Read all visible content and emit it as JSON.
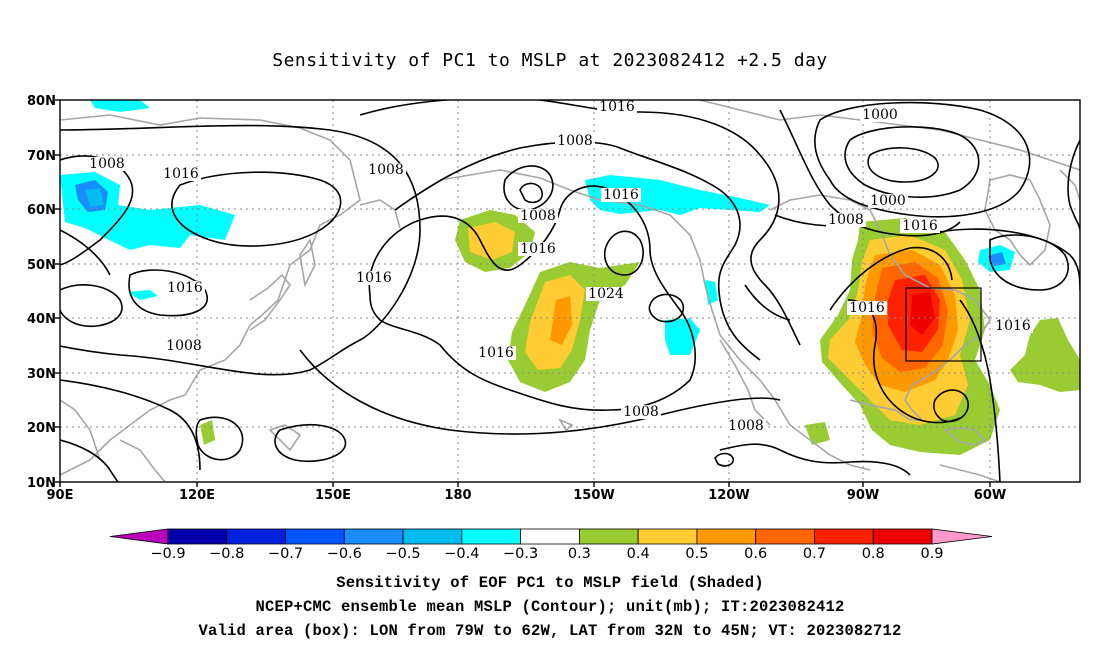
{
  "title": "Sensitivity of PC1 to MSLP at 2023082412 +2.5 day",
  "map": {
    "lat_labels": [
      "80N",
      "70N",
      "60N",
      "50N",
      "40N",
      "30N",
      "20N",
      "10N"
    ],
    "lon_labels": [
      "90E",
      "120E",
      "150E",
      "180",
      "150W",
      "120W",
      "90W",
      "60W"
    ],
    "contour_labels": [
      {
        "text": "1016"
      },
      {
        "text": "1000"
      },
      {
        "text": "1008"
      },
      {
        "text": "1008"
      },
      {
        "text": "1016"
      },
      {
        "text": "1008"
      },
      {
        "text": "1016"
      },
      {
        "text": "1000"
      },
      {
        "text": "1008"
      },
      {
        "text": "1008"
      },
      {
        "text": "1016"
      },
      {
        "text": "1016"
      },
      {
        "text": "1024"
      },
      {
        "text": "1016"
      },
      {
        "text": "1016"
      },
      {
        "text": "1016"
      },
      {
        "text": "1008"
      },
      {
        "text": "1016"
      },
      {
        "text": "1016"
      },
      {
        "text": "1008"
      },
      {
        "text": "1008"
      }
    ],
    "valid_box": {
      "lon_from": "79W",
      "lon_to": "62W",
      "lat_from": "32N",
      "lat_to": "45N"
    }
  },
  "colorbar": {
    "colors": [
      "#bb00bb",
      "#0000aa",
      "#0022dd",
      "#0055ff",
      "#1a8cff",
      "#00bbee",
      "#00ffff",
      "#ffffff",
      "#99cc33",
      "#ffcc33",
      "#ff9900",
      "#ff6600",
      "#ff2200",
      "#ee0000",
      "#ff99cc"
    ],
    "labels": [
      "−0.9",
      "−0.8",
      "−0.7",
      "−0.6",
      "−0.5",
      "−0.4",
      "−0.3",
      "0.3",
      "0.4",
      "0.5",
      "0.6",
      "0.7",
      "0.8",
      "0.9"
    ]
  },
  "captions": [
    "Sensitivity of EOF PC1 to MSLP field (Shaded)",
    "NCEP+CMC ensemble mean MSLP (Contour); unit(mb); IT:2023082412",
    "Valid area (box): LON from 79W to 62W, LAT from 32N to 45N; VT: 2023082712"
  ]
}
